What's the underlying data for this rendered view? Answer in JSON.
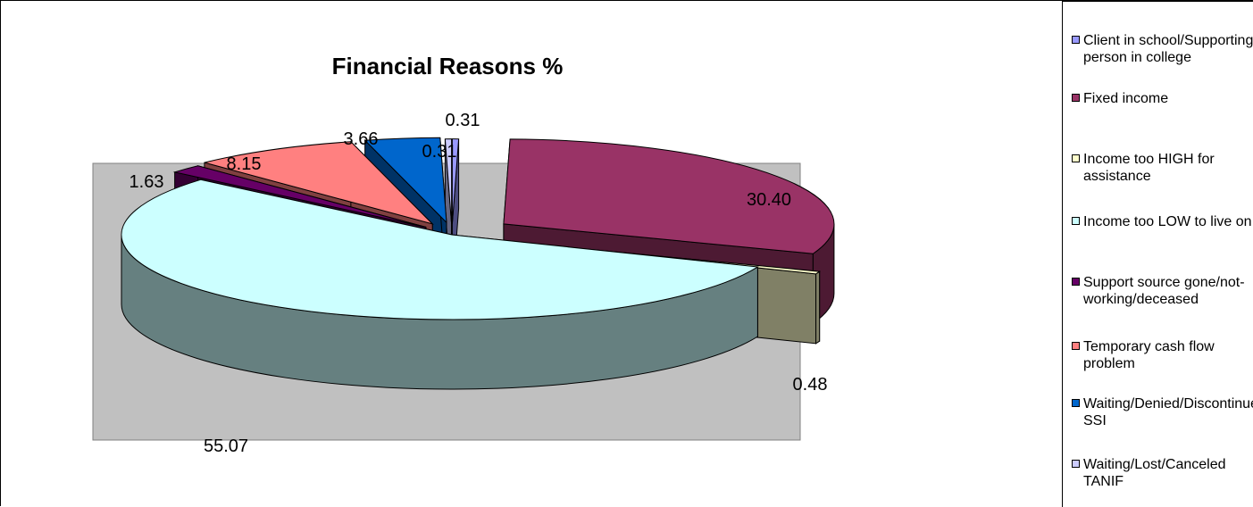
{
  "chart_data": {
    "type": "pie",
    "title": "Financial Reasons %",
    "legend_position": "right",
    "slices": [
      {
        "label": "Client in school/Supporting person in college",
        "value": 0.31,
        "value_label": "0.31",
        "color": "#9999ff",
        "side_color": "#4d4d80"
      },
      {
        "label": "Fixed income",
        "value": 30.4,
        "value_label": "30.40",
        "color": "#993366",
        "side_color": "#4d1a33"
      },
      {
        "label": "Income too HIGH for assistance",
        "value": 0.48,
        "value_label": "0.48",
        "color": "#ffffcc",
        "side_color": "#808066"
      },
      {
        "label": "Income too LOW to live on",
        "value": 55.07,
        "value_label": "55.07",
        "color": "#ccffff",
        "side_color": "#668080"
      },
      {
        "label": "Support source gone/not-working/deceased",
        "value": 1.63,
        "value_label": "1.63",
        "color": "#660066",
        "side_color": "#330033"
      },
      {
        "label": "Temporary cash flow problem",
        "value": 8.15,
        "value_label": "8.15",
        "color": "#ff8080",
        "side_color": "#804040"
      },
      {
        "label": "Waiting/Denied/Discontinued SSI",
        "value": 3.66,
        "value_label": "3.66",
        "color": "#0066cc",
        "side_color": "#003366"
      },
      {
        "label": "Waiting/Lost/Canceled TANIF",
        "value": 0.31,
        "value_label": "0.31",
        "color": "#ccccff",
        "side_color": "#666680"
      }
    ]
  },
  "plot_area_color": "#c0c0c0"
}
